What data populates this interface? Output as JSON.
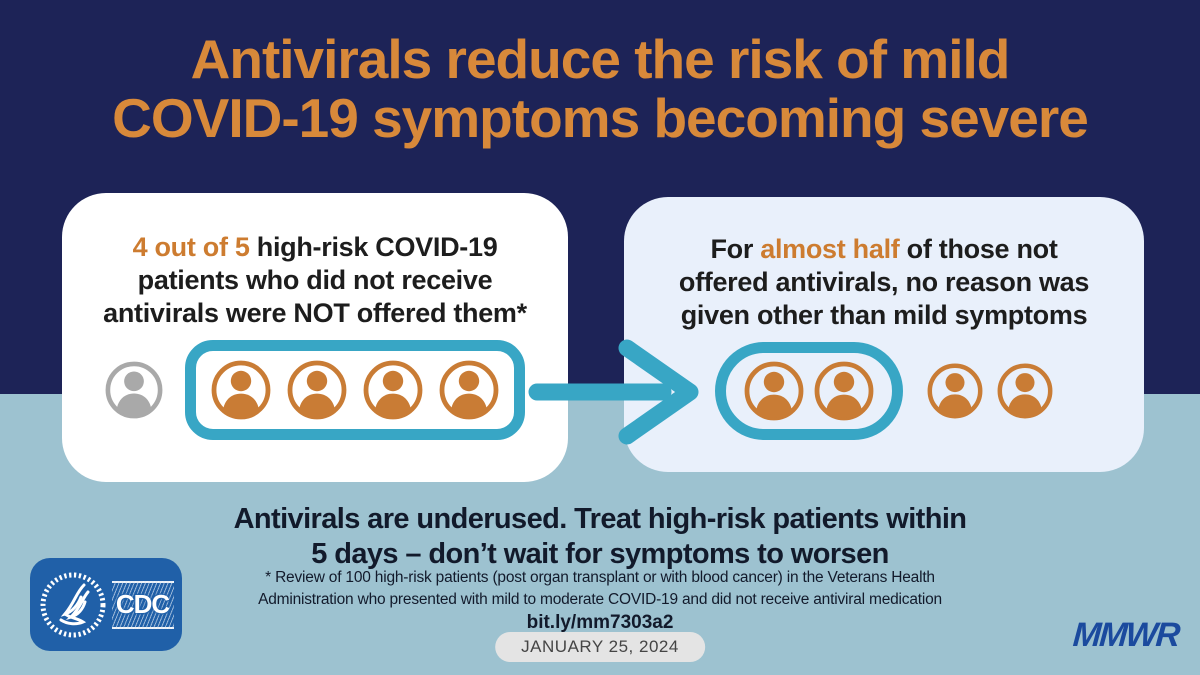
{
  "colors": {
    "navy_bg": "#1d2357",
    "sky_bg": "#9dc2d0",
    "orange": "#d8893a",
    "hl_orange": "#cd7c30",
    "icon_orange": "#c97c35",
    "gray_icon": "#a9a9a9",
    "teal": "#38a6c5",
    "card_white": "#ffffff",
    "card_lavender": "#e9f0fb",
    "dark_text": "#1d1d1d",
    "headline_navy": "#121a2b",
    "logo_blue": "#2060a8",
    "mmwr_blue": "#1b4a9e",
    "pill_gray": "#e4e4e4"
  },
  "title": {
    "line1": "Antivirals reduce the risk of mild",
    "line2": "COVID-19 symptoms becoming severe"
  },
  "cards": {
    "left": {
      "line1_highlight": "4 out of 5",
      "line1_rest": " high-risk COVID-19",
      "line2": "patients who did not receive",
      "line3": "antivirals were NOT offered them*",
      "icons": {
        "gray_count": 1,
        "grouped_orange_count": 4
      }
    },
    "right": {
      "line1_pre": "For ",
      "line1_highlight": "almost half",
      "line1_rest": " of those not",
      "line2": "offered antivirals, no reason was",
      "line3": "given other than mild symptoms",
      "icons": {
        "grouped_orange_count": 2,
        "ungrouped_orange_count": 2
      }
    }
  },
  "headline": {
    "line1": "Antivirals are underused. Treat high-risk patients within",
    "line2": "5 days – don’t wait for symptoms to worsen"
  },
  "footnote": {
    "line1": "* Review of 100 high-risk patients (post organ transplant or with blood cancer) in the Veterans Health",
    "line2": "Administration who presented with mild to moderate COVID-19 and did not receive antiviral medication"
  },
  "link_text": "bit.ly/mm7303a2",
  "date_badge": "JANUARY 25, 2024",
  "footer": {
    "cdc_label": "CDC",
    "mmwr_label": "MMWR"
  }
}
